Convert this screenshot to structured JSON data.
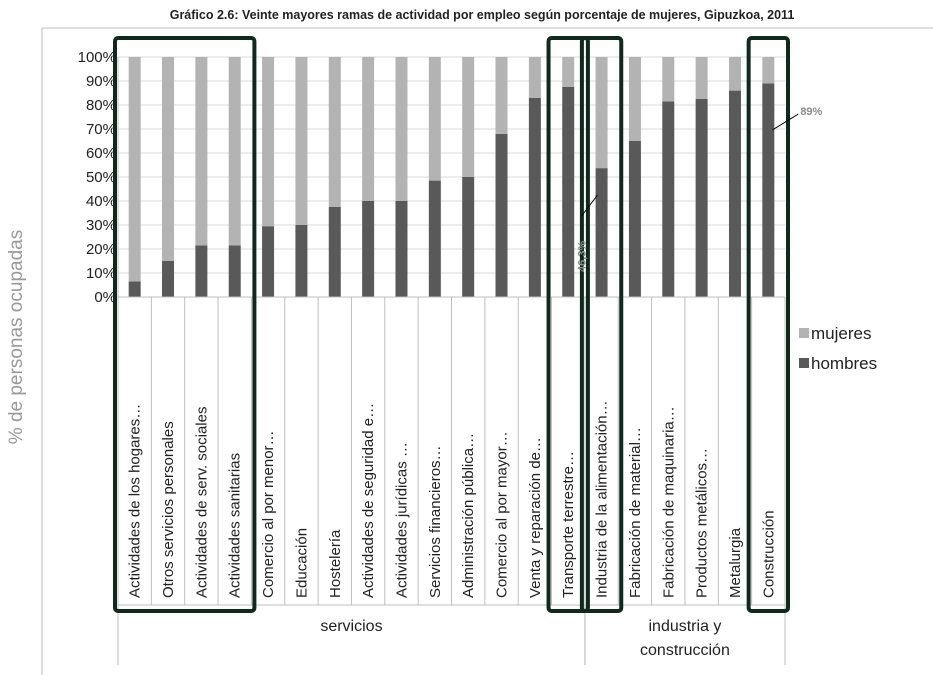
{
  "chart_data": {
    "type": "bar",
    "stacked": true,
    "title": "Gráfico 2.6: Veinte mayores ramas de actividad por empleo según porcentaje de mujeres, Gipuzkoa, 2011",
    "ylabel": "% de personas ocupadas",
    "xlabel": "",
    "ylim": [
      0,
      100
    ],
    "yticks": [
      "0%",
      "10%",
      "20%",
      "30%",
      "40%",
      "50%",
      "60%",
      "70%",
      "80%",
      "90%",
      "100%"
    ],
    "categories": [
      "Actividades de los hogares…",
      "Otros servicios personales",
      "Actividades de serv. sociales",
      "Actividades sanitarias",
      "Comercio al por menor…",
      "Educación",
      "Hostelería",
      "Actividades de seguridad e…",
      "Actividades jurídicas …",
      "Servicios financieros…",
      "Administración pública…",
      "Comercio al por mayor…",
      "Venta y reparación de…",
      "Transporte terrestre…",
      "Industria de la alimentación…",
      "Fabricación de material…",
      "Fabricación de maquinaria…",
      "Productos metálicos…",
      "Metalurgia",
      "Construcción"
    ],
    "groups": [
      {
        "label": "servicios",
        "start": 0,
        "end": 13
      },
      {
        "label": "industria y construcción",
        "label_lines": [
          "industria y",
          "construcción"
        ],
        "start": 14,
        "end": 19
      }
    ],
    "series": [
      {
        "name": "hombres",
        "color": "#595959",
        "values": [
          6.5,
          15,
          21.5,
          21.5,
          29.5,
          30,
          37.5,
          40,
          40,
          48.5,
          50,
          68,
          83,
          87.5,
          53.7,
          65,
          81.5,
          82.5,
          86,
          89
        ]
      },
      {
        "name": "mujeres",
        "color": "#b3b3b3",
        "values": [
          93.5,
          85,
          78.5,
          78.5,
          70.5,
          70,
          62.5,
          60,
          60,
          51.5,
          50,
          32,
          17,
          12.5,
          46.3,
          35,
          18.5,
          17.5,
          14,
          11
        ]
      }
    ],
    "legend": {
      "position": "right",
      "entries": [
        "mujeres",
        "hombres"
      ]
    },
    "annotations": [
      {
        "text": "89%",
        "category": "Construcción"
      },
      {
        "text": "46,3%",
        "category": "Industria de la alimentación…"
      }
    ],
    "highlight_boxes": [
      {
        "from": "Actividades de los hogares…",
        "to": "Actividades sanitarias"
      },
      {
        "from": "Transporte terrestre…",
        "to": "Transporte terrestre…"
      },
      {
        "from": "Industria de la alimentación…",
        "to": "Industria de la alimentación…"
      },
      {
        "from": "Construcción",
        "to": "Construcción"
      }
    ],
    "grid": true
  },
  "colors": {
    "hombres": "#595959",
    "mujeres": "#b3b3b3",
    "highlight": "#0f2a1c",
    "grid": "#d9d9d9",
    "axis": "#bfbfbf"
  }
}
